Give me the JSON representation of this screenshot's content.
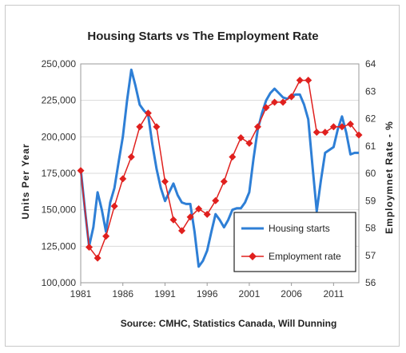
{
  "chart_data": {
    "type": "line",
    "title": "Housing Starts vs The Employment Rate",
    "ylabel": "Units Per Year",
    "y2label": "Employmnet Rate - %",
    "source": "Source: CMHC, Statistics Canada, Will Dunning",
    "xlim": [
      1981,
      2014
    ],
    "ylim": [
      100000,
      250000
    ],
    "y2lim": [
      56,
      64
    ],
    "x_ticks": [
      "1981",
      "1986",
      "1991",
      "1996",
      "2001",
      "2006",
      "2011"
    ],
    "y_ticks": [
      "100,000",
      "125,000",
      "150,000",
      "175,000",
      "200,000",
      "225,000",
      "250,000"
    ],
    "y2_ticks": [
      "56",
      "57",
      "58",
      "59",
      "60",
      "61",
      "62",
      "63",
      "64"
    ],
    "legend_position": "bottom-right",
    "series": [
      {
        "name": "Housing starts",
        "axis": "left",
        "color": "#2e7fd6",
        "x": [
          1981,
          1981.5,
          1982,
          1982.5,
          1983,
          1983.5,
          1984,
          1984.5,
          1985,
          1985.5,
          1986,
          1986.5,
          1987,
          1987.5,
          1988,
          1988.5,
          1989,
          1989.5,
          1990,
          1990.5,
          1991,
          1991.5,
          1992,
          1992.5,
          1993,
          1993.5,
          1994,
          1994.5,
          1995,
          1995.5,
          1996,
          1996.5,
          1997,
          1997.5,
          1998,
          1998.5,
          1999,
          1999.5,
          2000,
          2000.5,
          2001,
          2001.5,
          2002,
          2002.5,
          2003,
          2003.5,
          2004,
          2004.5,
          2005,
          2005.5,
          2006,
          2006.5,
          2007,
          2007.5,
          2008,
          2008.5,
          2009,
          2009.5,
          2010,
          2010.5,
          2011,
          2011.5,
          2012,
          2012.5,
          2013,
          2013.5,
          2014
        ],
        "values": [
          178000,
          150000,
          125000,
          138000,
          162000,
          150000,
          135000,
          155000,
          165000,
          183000,
          200000,
          225000,
          246000,
          235000,
          222000,
          218000,
          215000,
          195000,
          178000,
          165000,
          156000,
          162000,
          168000,
          160000,
          155000,
          154000,
          154000,
          135000,
          111000,
          115000,
          122000,
          135000,
          147000,
          143000,
          138000,
          143000,
          150000,
          151000,
          151000,
          155000,
          162000,
          185000,
          205000,
          216000,
          225000,
          230000,
          233000,
          230000,
          227000,
          226000,
          228000,
          229000,
          229000,
          222000,
          212000,
          180000,
          149000,
          170000,
          189000,
          191000,
          193000,
          205000,
          214000,
          203000,
          188000,
          189000,
          189000
        ]
      },
      {
        "name": "Employment rate",
        "axis": "right",
        "color": "#e0201e",
        "x": [
          1981,
          1982,
          1983,
          1984,
          1985,
          1986,
          1987,
          1988,
          1989,
          1990,
          1991,
          1992,
          1993,
          1994,
          1995,
          1996,
          1997,
          1998,
          1999,
          2000,
          2001,
          2002,
          2003,
          2004,
          2005,
          2006,
          2007,
          2008,
          2009,
          2010,
          2011,
          2012,
          2013,
          2014
        ],
        "values": [
          60.1,
          57.3,
          56.9,
          57.7,
          58.8,
          59.8,
          60.6,
          61.7,
          62.2,
          61.7,
          59.7,
          58.3,
          57.9,
          58.4,
          58.7,
          58.5,
          59.0,
          59.7,
          60.6,
          61.3,
          61.1,
          61.7,
          62.4,
          62.6,
          62.6,
          62.8,
          63.4,
          63.4,
          61.5,
          61.5,
          61.7,
          61.7,
          61.8,
          61.4
        ]
      }
    ]
  }
}
